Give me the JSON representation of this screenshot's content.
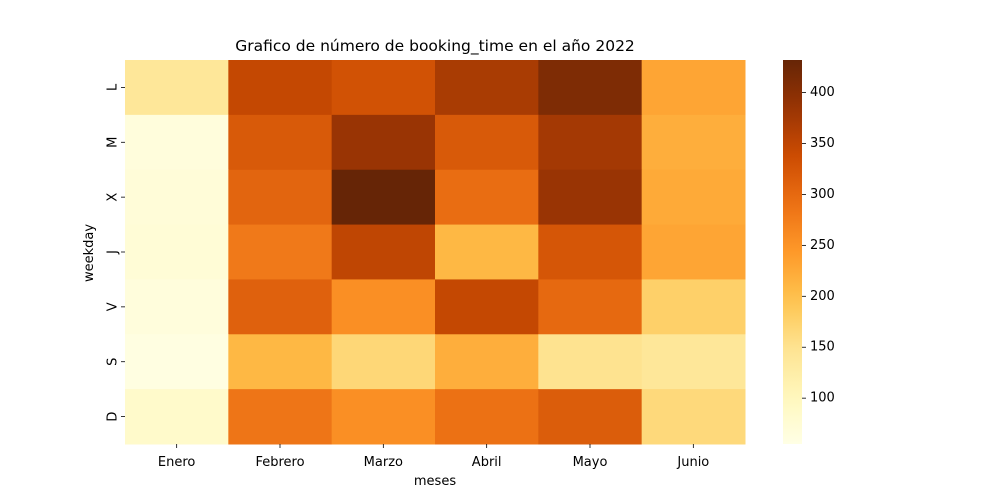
{
  "chart_data": {
    "type": "heatmap",
    "title": "Grafico de número de booking_time en el año 2022",
    "xlabel": "meses",
    "ylabel": "weekday",
    "x_categories": [
      "Enero",
      "Febrero",
      "Marzo",
      "Abril",
      "Mayo",
      "Junio"
    ],
    "y_categories": [
      "L",
      "M",
      "X",
      "J",
      "V",
      "S",
      "D"
    ],
    "values": [
      [
        140,
        345,
        330,
        370,
        410,
        230
      ],
      [
        65,
        320,
        385,
        320,
        375,
        220
      ],
      [
        70,
        305,
        432,
        295,
        385,
        225
      ],
      [
        72,
        280,
        350,
        210,
        325,
        230
      ],
      [
        65,
        310,
        255,
        345,
        300,
        178
      ],
      [
        60,
        210,
        168,
        220,
        150,
        140
      ],
      [
        85,
        285,
        255,
        290,
        315,
        165
      ]
    ],
    "colorbar": {
      "ticks": [
        100,
        150,
        200,
        250,
        300,
        350,
        400
      ],
      "vmin": 55,
      "vmax": 432
    },
    "colormap": "YlOrBr",
    "grid": false
  }
}
